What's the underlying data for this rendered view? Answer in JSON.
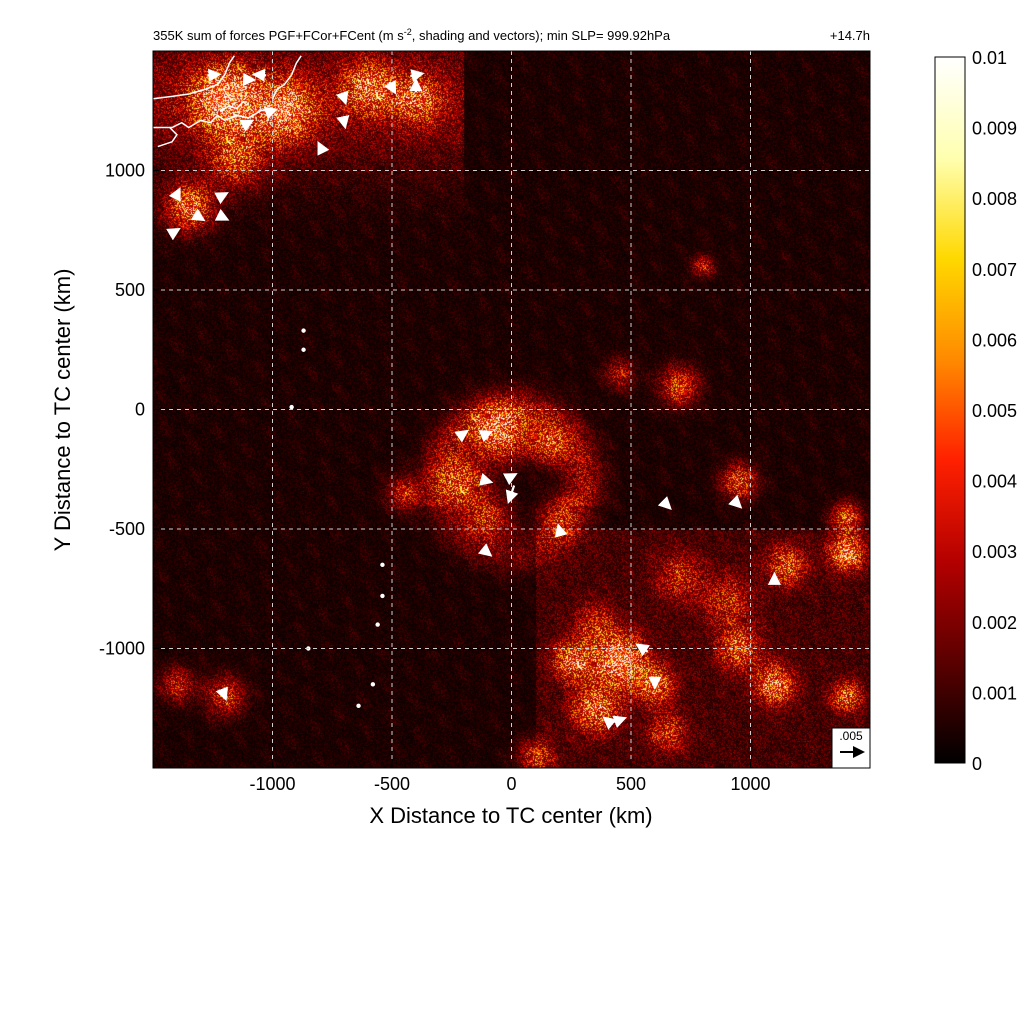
{
  "chart_data": {
    "type": "heatmap",
    "title": "355K sum of forces PGF+FCor+FCent (m s",
    "title_superscript": "-2",
    "title_rest": ", shading and vectors); min SLP= 999.92hPa",
    "time_label": "+14.7h",
    "xlabel": "X Distance to TC center (km)",
    "ylabel": "Y Distance to TC center (km)",
    "xlim": [
      -1500,
      1500
    ],
    "ylim": [
      -1500,
      1500
    ],
    "xticks": [
      -1000,
      -500,
      0,
      500,
      1000
    ],
    "yticks": [
      1000,
      500,
      0,
      -500,
      -1000
    ],
    "xtick_labels": [
      "-1000",
      "-500",
      "0",
      "500",
      "1000"
    ],
    "ytick_labels": [
      "1000",
      "500",
      "0",
      "-500",
      "-1000"
    ],
    "grid": true,
    "colorbar": {
      "min": 0,
      "max": 0.01,
      "ticks": [
        0.01,
        0.009,
        0.008,
        0.007,
        0.006,
        0.005,
        0.004,
        0.003,
        0.002,
        0.001,
        0
      ],
      "tick_labels": [
        "0.01",
        "0.009",
        "0.008",
        "0.007",
        "0.006",
        "0.005",
        "0.004",
        "0.003",
        "0.002",
        "0.001",
        "0"
      ],
      "colors": [
        "#000000",
        "#5a0000",
        "#b40000",
        "#ff2000",
        "#ff8a00",
        "#ffd800",
        "#ffffb0",
        "#ffffff"
      ]
    },
    "reference_vector": {
      "label": ".005",
      "value": 0.005
    },
    "hotspots": [
      {
        "x": -1200,
        "y": 1300,
        "v": 0.0075,
        "r": 150
      },
      {
        "x": -950,
        "y": 1250,
        "v": 0.006,
        "r": 140
      },
      {
        "x": -600,
        "y": 1350,
        "v": 0.005,
        "r": 120
      },
      {
        "x": -1350,
        "y": 850,
        "v": 0.006,
        "r": 110
      },
      {
        "x": -1150,
        "y": 1050,
        "v": 0.004,
        "r": 130
      },
      {
        "x": -400,
        "y": 1300,
        "v": 0.0045,
        "r": 110
      },
      {
        "x": -50,
        "y": -100,
        "v": 0.0065,
        "r": 120
      },
      {
        "x": 150,
        "y": -150,
        "v": 0.004,
        "r": 90
      },
      {
        "x": -200,
        "y": -300,
        "v": 0.0045,
        "r": 110
      },
      {
        "x": -450,
        "y": -350,
        "v": 0.0035,
        "r": 80
      },
      {
        "x": 200,
        "y": -450,
        "v": 0.0035,
        "r": 90
      },
      {
        "x": -100,
        "y": -450,
        "v": 0.004,
        "r": 100
      },
      {
        "x": 700,
        "y": 100,
        "v": 0.0045,
        "r": 90
      },
      {
        "x": 450,
        "y": 150,
        "v": 0.003,
        "r": 70
      },
      {
        "x": 950,
        "y": -300,
        "v": 0.005,
        "r": 80
      },
      {
        "x": 1400,
        "y": -600,
        "v": 0.0065,
        "r": 80
      },
      {
        "x": 1400,
        "y": -450,
        "v": 0.005,
        "r": 70
      },
      {
        "x": 1150,
        "y": -650,
        "v": 0.0045,
        "r": 90
      },
      {
        "x": 450,
        "y": -1050,
        "v": 0.0075,
        "r": 120
      },
      {
        "x": 250,
        "y": -1050,
        "v": 0.0055,
        "r": 90
      },
      {
        "x": 350,
        "y": -1250,
        "v": 0.0055,
        "r": 110
      },
      {
        "x": 600,
        "y": -1150,
        "v": 0.005,
        "r": 90
      },
      {
        "x": 1100,
        "y": -1150,
        "v": 0.006,
        "r": 90
      },
      {
        "x": 1400,
        "y": -1200,
        "v": 0.005,
        "r": 70
      },
      {
        "x": 950,
        "y": -1000,
        "v": 0.0045,
        "r": 100
      },
      {
        "x": -1200,
        "y": -1200,
        "v": 0.004,
        "r": 90
      },
      {
        "x": -1400,
        "y": -1150,
        "v": 0.0035,
        "r": 80
      },
      {
        "x": 800,
        "y": 600,
        "v": 0.0035,
        "r": 50
      },
      {
        "x": 700,
        "y": -700,
        "v": 0.003,
        "r": 110
      },
      {
        "x": 900,
        "y": -800,
        "v": 0.003,
        "r": 120
      },
      {
        "x": 100,
        "y": -1450,
        "v": 0.004,
        "r": 80
      },
      {
        "x": 650,
        "y": -1350,
        "v": 0.0035,
        "r": 90
      },
      {
        "x": 350,
        "y": -900,
        "v": 0.003,
        "r": 100
      }
    ],
    "ring": {
      "x": 0,
      "y": -300,
      "radius_km": 300,
      "v": 0.003
    },
    "vectors": [
      {
        "x": -1250,
        "y": 1400,
        "u": 0.0025,
        "v": 0.0002
      },
      {
        "x": -1050,
        "y": 1400,
        "u": -0.0025,
        "v": 0.0002
      },
      {
        "x": -1100,
        "y": 1380,
        "u": 0.002,
        "v": -0.0001
      },
      {
        "x": -400,
        "y": 1400,
        "u": 0.0025,
        "v": 0.0005
      },
      {
        "x": -400,
        "y": 1350,
        "u": 0.0,
        "v": 0.0025
      },
      {
        "x": -500,
        "y": 1350,
        "u": 0.0012,
        "v": -0.0022
      },
      {
        "x": -700,
        "y": 1300,
        "u": 0.0005,
        "v": -0.0015
      },
      {
        "x": -700,
        "y": 1200,
        "u": 0.0003,
        "v": -0.0015
      },
      {
        "x": -800,
        "y": 1100,
        "u": -0.0006,
        "v": 0.0012
      },
      {
        "x": -1100,
        "y": 1200,
        "u": 0.0012,
        "v": 0.0006
      },
      {
        "x": -1000,
        "y": 1250,
        "u": 0.0012,
        "v": 0.0004
      },
      {
        "x": -1400,
        "y": 900,
        "u": 0.001,
        "v": 0.002
      },
      {
        "x": -1300,
        "y": 800,
        "u": 0.0008,
        "v": -0.0005
      },
      {
        "x": -1200,
        "y": 800,
        "u": 0.0008,
        "v": -0.0004
      },
      {
        "x": -1400,
        "y": 750,
        "u": 0.0005,
        "v": 0.0003
      },
      {
        "x": -1200,
        "y": 900,
        "u": 0.0006,
        "v": 0.0003
      },
      {
        "x": -100,
        "y": -300,
        "u": 0.0012,
        "v": -0.0003
      },
      {
        "x": 0,
        "y": -350,
        "u": -0.0012,
        "v": -0.0035
      },
      {
        "x": 0,
        "y": -280,
        "u": 0.0015,
        "v": 0.0008
      },
      {
        "x": -200,
        "y": -100,
        "u": 0.0012,
        "v": 0.0008
      },
      {
        "x": -100,
        "y": -100,
        "u": 0.0012,
        "v": 0.0005
      },
      {
        "x": 200,
        "y": -500,
        "u": -0.0003,
        "v": 0.0012
      },
      {
        "x": -100,
        "y": -600,
        "u": 0.001,
        "v": -0.0008
      },
      {
        "x": 650,
        "y": -400,
        "u": 0.0012,
        "v": -0.0012
      },
      {
        "x": 550,
        "y": -1000,
        "u": -0.0022,
        "v": 0.0015
      },
      {
        "x": 450,
        "y": -1300,
        "u": 0.0022,
        "v": 0.0008
      },
      {
        "x": 400,
        "y": -1300,
        "u": -0.001,
        "v": 0.0008
      },
      {
        "x": 600,
        "y": -1150,
        "u": 0.0,
        "v": -0.001
      },
      {
        "x": 950,
        "y": -400,
        "u": 0.0006,
        "v": -0.0006
      },
      {
        "x": 1100,
        "y": -700,
        "u": 0.0,
        "v": 0.0008
      },
      {
        "x": -1200,
        "y": -1200,
        "u": 0.0003,
        "v": -0.0008
      }
    ],
    "coastlines": [
      [
        [
          -1500,
          1300
        ],
        [
          -1420,
          1310
        ],
        [
          -1350,
          1320
        ],
        [
          -1280,
          1340
        ],
        [
          -1230,
          1360
        ],
        [
          -1200,
          1400
        ],
        [
          -1180,
          1450
        ],
        [
          -1160,
          1480
        ]
      ],
      [
        [
          -1500,
          1180
        ],
        [
          -1420,
          1180
        ],
        [
          -1380,
          1200
        ],
        [
          -1350,
          1180
        ],
        [
          -1300,
          1210
        ],
        [
          -1260,
          1200
        ],
        [
          -1230,
          1230
        ],
        [
          -1200,
          1210
        ],
        [
          -1150,
          1230
        ],
        [
          -1100,
          1220
        ],
        [
          -1050,
          1250
        ],
        [
          -1000,
          1260
        ]
      ],
      [
        [
          -1480,
          1100
        ],
        [
          -1420,
          1120
        ],
        [
          -1400,
          1150
        ],
        [
          -1430,
          1180
        ]
      ],
      [
        [
          -1000,
          1300
        ],
        [
          -980,
          1340
        ],
        [
          -950,
          1360
        ],
        [
          -920,
          1400
        ],
        [
          -900,
          1450
        ],
        [
          -880,
          1480
        ]
      ],
      [
        [
          -1220,
          1250
        ],
        [
          -1180,
          1270
        ],
        [
          -1150,
          1260
        ],
        [
          -1120,
          1290
        ]
      ]
    ],
    "islands": [
      {
        "x": -640,
        "y": -1240
      },
      {
        "x": -580,
        "y": -1150
      },
      {
        "x": -560,
        "y": -900
      },
      {
        "x": -540,
        "y": -780
      },
      {
        "x": -540,
        "y": -650
      },
      {
        "x": -850,
        "y": -1000
      },
      {
        "x": -870,
        "y": 330
      },
      {
        "x": -870,
        "y": 250
      },
      {
        "x": -920,
        "y": 10
      }
    ]
  }
}
